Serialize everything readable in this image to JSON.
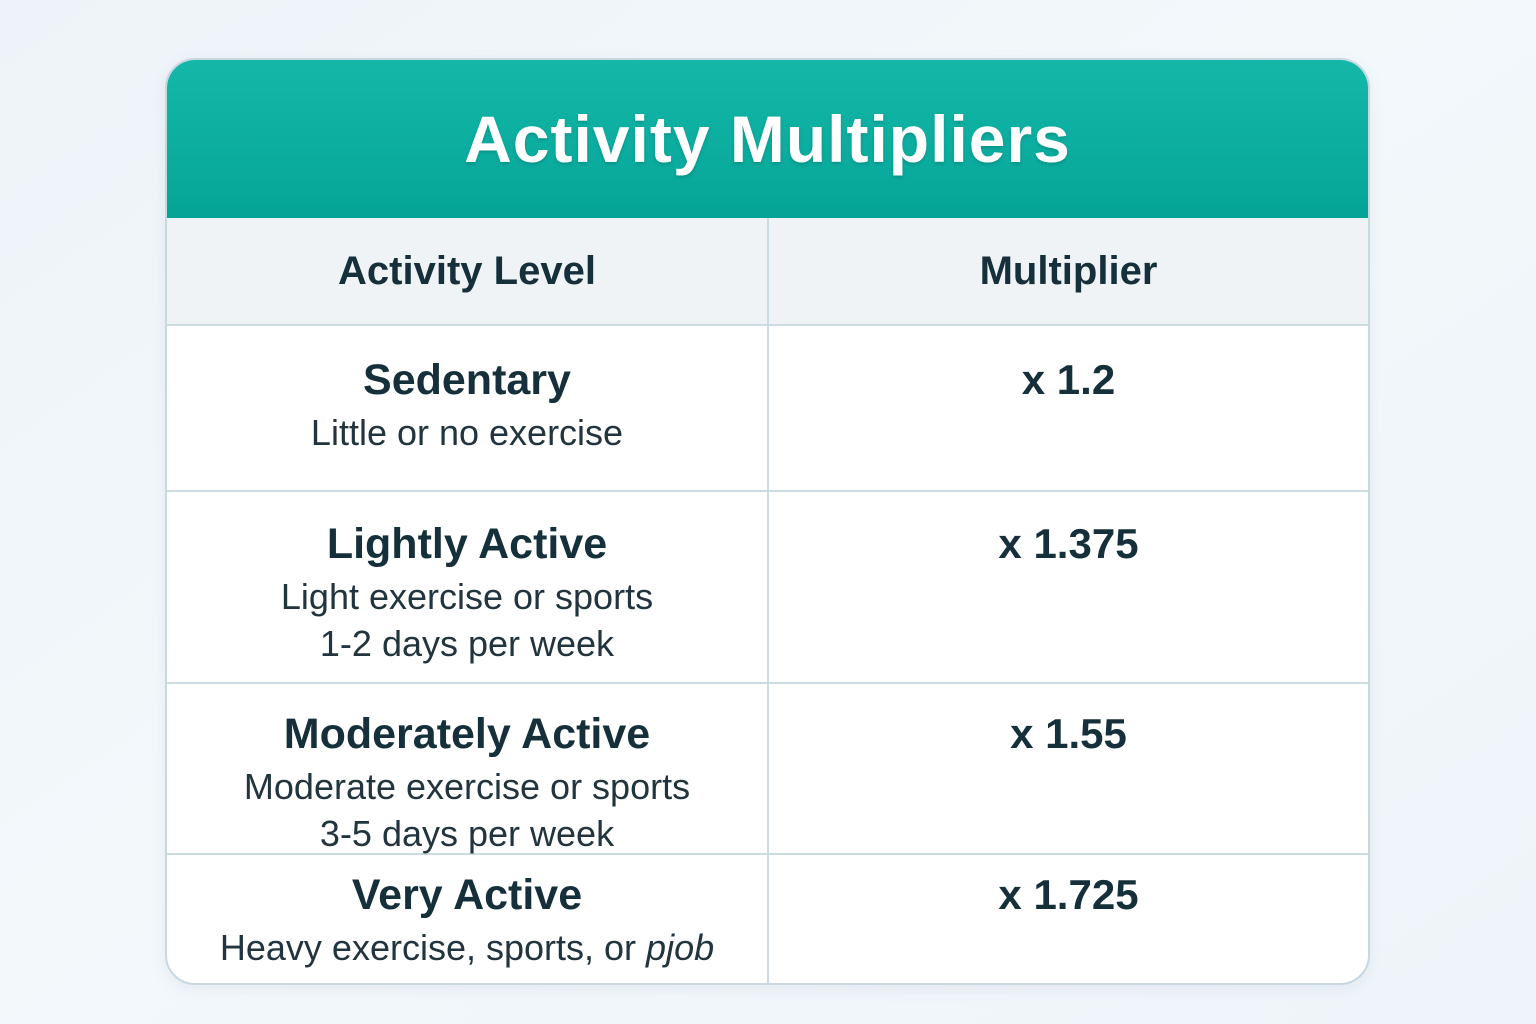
{
  "title": "Activity Multipliers",
  "colors": {
    "teal_header_top": "#14b7a8",
    "teal_header_bottom": "#04a396",
    "header_row_bg": "#f0f3f5",
    "card_bg": "#ffffff",
    "page_bg": "#f1f5f9",
    "border": "#ccdae2",
    "text_dark": "#15303a",
    "title_text": "#ffffff"
  },
  "table": {
    "columns": [
      "Activity Level",
      "Multiplier"
    ],
    "rows": [
      {
        "title": "Sedentary",
        "description": "Little or no exercise",
        "multiplier": "x 1.2"
      },
      {
        "title": "Lightly Active",
        "description": "Light exercise or sports\n1-2 days per week",
        "multiplier": "x 1.375"
      },
      {
        "title": "Moderately Active",
        "description": "Moderate exercise or sports\n3-5 days per week",
        "multiplier": "x 1.55"
      },
      {
        "title": "Very Active",
        "description": "Heavy exercise, sports, or ",
        "description_italic": "pjob",
        "multiplier": "x 1.725"
      }
    ]
  }
}
